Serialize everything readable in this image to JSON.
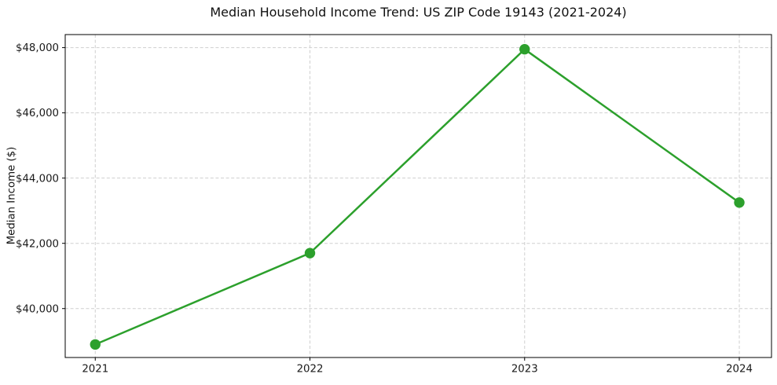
{
  "figure": {
    "background_color": "#ffffff",
    "text_color": "#1a1a1a",
    "frame_color": "#000000",
    "grid_color": "#cfcfcf"
  },
  "chart_data": {
    "type": "line",
    "title": "Median Household Income Trend: US ZIP Code 19143 (2021-2024)",
    "xlabel": "",
    "ylabel": "Median Income ($)",
    "x": [
      2021,
      2022,
      2023,
      2024
    ],
    "values": [
      38900,
      41700,
      47950,
      43250
    ],
    "xtick_labels": [
      "2021",
      "2022",
      "2023",
      "2024"
    ],
    "yticks": [
      40000,
      42000,
      44000,
      46000,
      48000
    ],
    "ytick_labels": [
      "$40,000",
      "$42,000",
      "$44,000",
      "$46,000",
      "$48,000"
    ],
    "xlim": [
      2020.86,
      2024.15
    ],
    "ylim": [
      38500,
      48400
    ],
    "line_color": "#2ca02c",
    "marker": "circle",
    "grid": true,
    "grid_style": "dashed",
    "legend": "none"
  }
}
